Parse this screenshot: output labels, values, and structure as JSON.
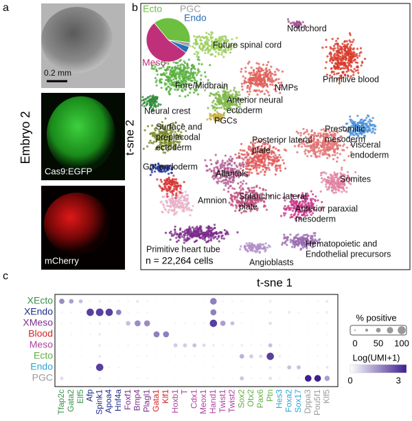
{
  "panel_labels": [
    "a",
    "b",
    "c"
  ],
  "panel_a": {
    "embryo": "Embryo 2",
    "scale_bar": "0.2 mm",
    "green_label": "Cas9:EGFP",
    "red_label": "mCherry"
  },
  "chart_data": [
    {
      "type": "pie",
      "categories": [
        "Ecto",
        "PGC",
        "Endo",
        "Meso"
      ],
      "values": [
        38,
        3,
        5,
        54
      ],
      "colors": [
        "#6cbf3f",
        "#a0a0a0",
        "#2a6fb8",
        "#c0307a"
      ]
    },
    {
      "type": "scatter",
      "xlabel": "t-sne 1",
      "ylabel": "t-sne 2",
      "caption": "n = 22,264 cells",
      "annotations": [
        [
          "Notochord"
        ],
        [
          "Future spinal cord"
        ],
        [
          "Primitive blood"
        ],
        [
          "Fore/Midbrain"
        ],
        [
          "Anterior neural",
          "ectoderm"
        ],
        [
          "NMPs"
        ],
        [
          "Neural crest"
        ],
        [
          "PGCs"
        ],
        [
          "Surface and",
          "preplacodal",
          "ectoderm"
        ],
        [
          "Presomitic",
          "mesoderm"
        ],
        [
          "Visceral",
          "endoderm"
        ],
        [
          "Posterior lateral",
          "plate"
        ],
        [
          "Gut endoderm"
        ],
        [
          "Allantois"
        ],
        [
          "Somites"
        ],
        [
          "Amnion"
        ],
        [
          "Splanchnic lateral",
          "plate"
        ],
        [
          "Anterior paraxial",
          "mesoderm"
        ],
        [
          "Primitive heart tube"
        ],
        [
          "Hematopoietic and",
          "Endothelial precursors"
        ],
        [
          "Angioblasts"
        ]
      ]
    },
    {
      "type": "dot",
      "categories": [
        "Tfap2c",
        "Gata2",
        "Elf5",
        "Afp",
        "Spink1",
        "Apoa4",
        "Hnf4a",
        "Foxf1",
        "Bmp4",
        "Plagl1",
        "Gata1",
        "Klf1",
        "Hoxb1",
        "T",
        "Cdx1",
        "Meox1",
        "Hand1",
        "Twist1",
        "Twist2",
        "Sox2",
        "Otx2",
        "Pax6",
        "Ptn",
        "Hes3",
        "Foxa2",
        "Sox17",
        "Dppa3",
        "Pou5f1",
        "Klf5"
      ],
      "category_colors": [
        "#3a8f4a",
        "#3a8f4a",
        "#3a8f4a",
        "#1f2a8a",
        "#1f2a8a",
        "#1f2a8a",
        "#1f2a8a",
        "#7b2d8e",
        "#7b2d8e",
        "#7b2d8e",
        "#d62020",
        "#d62020",
        "#b040a0",
        "#b040a0",
        "#b040a0",
        "#b040a0",
        "#b040a0",
        "#b040a0",
        "#b040a0",
        "#5fae3f",
        "#5fae3f",
        "#5fae3f",
        "#5fae3f",
        "#2aa6d6",
        "#2aa6d6",
        "#2aa6d6",
        "#999999",
        "#999999",
        "#999999"
      ],
      "series": [
        {
          "name": "XEcto",
          "color": "#3a8f4a",
          "pct": [
            60,
            50,
            40,
            10,
            20,
            10,
            10,
            10,
            20,
            10,
            5,
            5,
            5,
            5,
            5,
            5,
            80,
            10,
            10,
            10,
            5,
            5,
            20,
            5,
            5,
            5,
            5,
            10,
            20
          ],
          "expr": [
            1.8,
            1.5,
            1.0,
            0.2,
            0.3,
            0.2,
            0.2,
            0.2,
            0.4,
            0.2,
            0.1,
            0.1,
            0.1,
            0.1,
            0.1,
            0.1,
            2.0,
            0.2,
            0.2,
            0.2,
            0.1,
            0.1,
            0.3,
            0.1,
            0.1,
            0.1,
            0.1,
            0.2,
            0.4
          ]
        },
        {
          "name": "XEndo",
          "color": "#1f2a8a",
          "pct": [
            10,
            10,
            10,
            90,
            95,
            90,
            60,
            10,
            10,
            10,
            5,
            5,
            5,
            5,
            5,
            5,
            70,
            10,
            10,
            10,
            5,
            5,
            20,
            5,
            20,
            10,
            5,
            10,
            20
          ],
          "expr": [
            0.2,
            0.2,
            0.2,
            3.0,
            3.0,
            3.0,
            2.0,
            0.2,
            0.2,
            0.2,
            0.1,
            0.1,
            0.1,
            0.1,
            0.1,
            0.1,
            2.0,
            0.2,
            0.2,
            0.2,
            0.1,
            0.1,
            0.3,
            0.1,
            0.4,
            0.2,
            0.1,
            0.2,
            0.3
          ]
        },
        {
          "name": "XMeso",
          "color": "#7b2d8e",
          "pct": [
            10,
            10,
            5,
            10,
            20,
            10,
            10,
            50,
            70,
            70,
            5,
            5,
            10,
            10,
            10,
            10,
            90,
            60,
            40,
            10,
            5,
            5,
            30,
            5,
            5,
            5,
            5,
            10,
            10
          ],
          "expr": [
            0.2,
            0.2,
            0.1,
            0.2,
            0.3,
            0.2,
            0.2,
            1.0,
            1.8,
            1.8,
            0.1,
            0.1,
            0.2,
            0.2,
            0.2,
            0.2,
            3.0,
            1.5,
            1.0,
            0.2,
            0.1,
            0.1,
            0.5,
            0.1,
            0.1,
            0.1,
            0.1,
            0.2,
            0.2
          ]
        },
        {
          "name": "Blood",
          "color": "#d62020",
          "pct": [
            5,
            10,
            5,
            10,
            20,
            5,
            5,
            5,
            10,
            10,
            70,
            70,
            5,
            5,
            5,
            5,
            10,
            5,
            5,
            5,
            5,
            5,
            10,
            5,
            5,
            5,
            5,
            5,
            10
          ],
          "expr": [
            0.1,
            0.2,
            0.1,
            0.2,
            0.3,
            0.1,
            0.1,
            0.1,
            0.2,
            0.2,
            2.0,
            2.0,
            0.1,
            0.1,
            0.1,
            0.1,
            0.2,
            0.1,
            0.1,
            0.1,
            0.1,
            0.1,
            0.2,
            0.1,
            0.1,
            0.1,
            0.1,
            0.1,
            0.2
          ]
        },
        {
          "name": "Meso",
          "color": "#b040a0",
          "pct": [
            5,
            5,
            5,
            5,
            20,
            5,
            5,
            10,
            10,
            10,
            5,
            5,
            40,
            40,
            40,
            30,
            20,
            10,
            10,
            20,
            10,
            10,
            40,
            10,
            5,
            5,
            5,
            10,
            10
          ],
          "expr": [
            0.1,
            0.1,
            0.1,
            0.1,
            0.3,
            0.1,
            0.1,
            0.2,
            0.2,
            0.2,
            0.1,
            0.1,
            0.8,
            0.8,
            1.0,
            0.6,
            0.3,
            0.2,
            0.2,
            0.3,
            0.2,
            0.2,
            1.0,
            0.2,
            0.1,
            0.1,
            0.1,
            0.2,
            0.2
          ]
        },
        {
          "name": "Ecto",
          "color": "#5fae3f",
          "pct": [
            5,
            5,
            5,
            5,
            20,
            5,
            5,
            5,
            10,
            10,
            5,
            5,
            10,
            10,
            10,
            5,
            10,
            5,
            5,
            50,
            40,
            30,
            90,
            20,
            5,
            5,
            5,
            10,
            10
          ],
          "expr": [
            0.1,
            0.1,
            0.1,
            0.1,
            0.3,
            0.1,
            0.1,
            0.1,
            0.2,
            0.2,
            0.1,
            0.1,
            0.2,
            0.2,
            0.2,
            0.1,
            0.2,
            0.1,
            0.1,
            1.2,
            0.8,
            0.6,
            3.0,
            0.3,
            0.1,
            0.1,
            0.1,
            0.2,
            0.2
          ]
        },
        {
          "name": "Endo",
          "color": "#2aa6d6",
          "pct": [
            5,
            5,
            5,
            10,
            90,
            10,
            10,
            5,
            10,
            5,
            5,
            5,
            5,
            5,
            5,
            5,
            10,
            5,
            5,
            10,
            10,
            5,
            20,
            10,
            40,
            40,
            5,
            10,
            20
          ],
          "expr": [
            0.1,
            0.1,
            0.1,
            0.2,
            3.0,
            0.2,
            0.2,
            0.1,
            0.2,
            0.1,
            0.1,
            0.1,
            0.1,
            0.1,
            0.1,
            0.1,
            0.2,
            0.1,
            0.1,
            0.2,
            0.2,
            0.1,
            0.3,
            0.2,
            1.0,
            1.0,
            0.1,
            0.2,
            0.4
          ]
        },
        {
          "name": "PGC",
          "color": "#999999",
          "pct": [
            30,
            5,
            5,
            5,
            20,
            5,
            5,
            5,
            10,
            10,
            5,
            5,
            5,
            5,
            5,
            5,
            10,
            5,
            5,
            40,
            10,
            10,
            30,
            10,
            5,
            10,
            80,
            80,
            60
          ],
          "expr": [
            0.6,
            0.1,
            0.1,
            0.1,
            0.3,
            0.1,
            0.1,
            0.1,
            0.2,
            0.2,
            0.1,
            0.1,
            0.1,
            0.1,
            0.1,
            0.1,
            0.2,
            0.1,
            0.1,
            0.9,
            0.2,
            0.2,
            0.5,
            0.2,
            0.1,
            0.2,
            3.5,
            3.5,
            1.5
          ]
        }
      ],
      "size_title": "% positive",
      "size_ticks": [
        0,
        50,
        100
      ],
      "color_title": "Log(UMI+1)",
      "clim": [
        0,
        3.5
      ],
      "color_ticks": [
        0,
        3
      ],
      "color_low": "#ffffff",
      "color_high": "#3d1f8f"
    }
  ]
}
